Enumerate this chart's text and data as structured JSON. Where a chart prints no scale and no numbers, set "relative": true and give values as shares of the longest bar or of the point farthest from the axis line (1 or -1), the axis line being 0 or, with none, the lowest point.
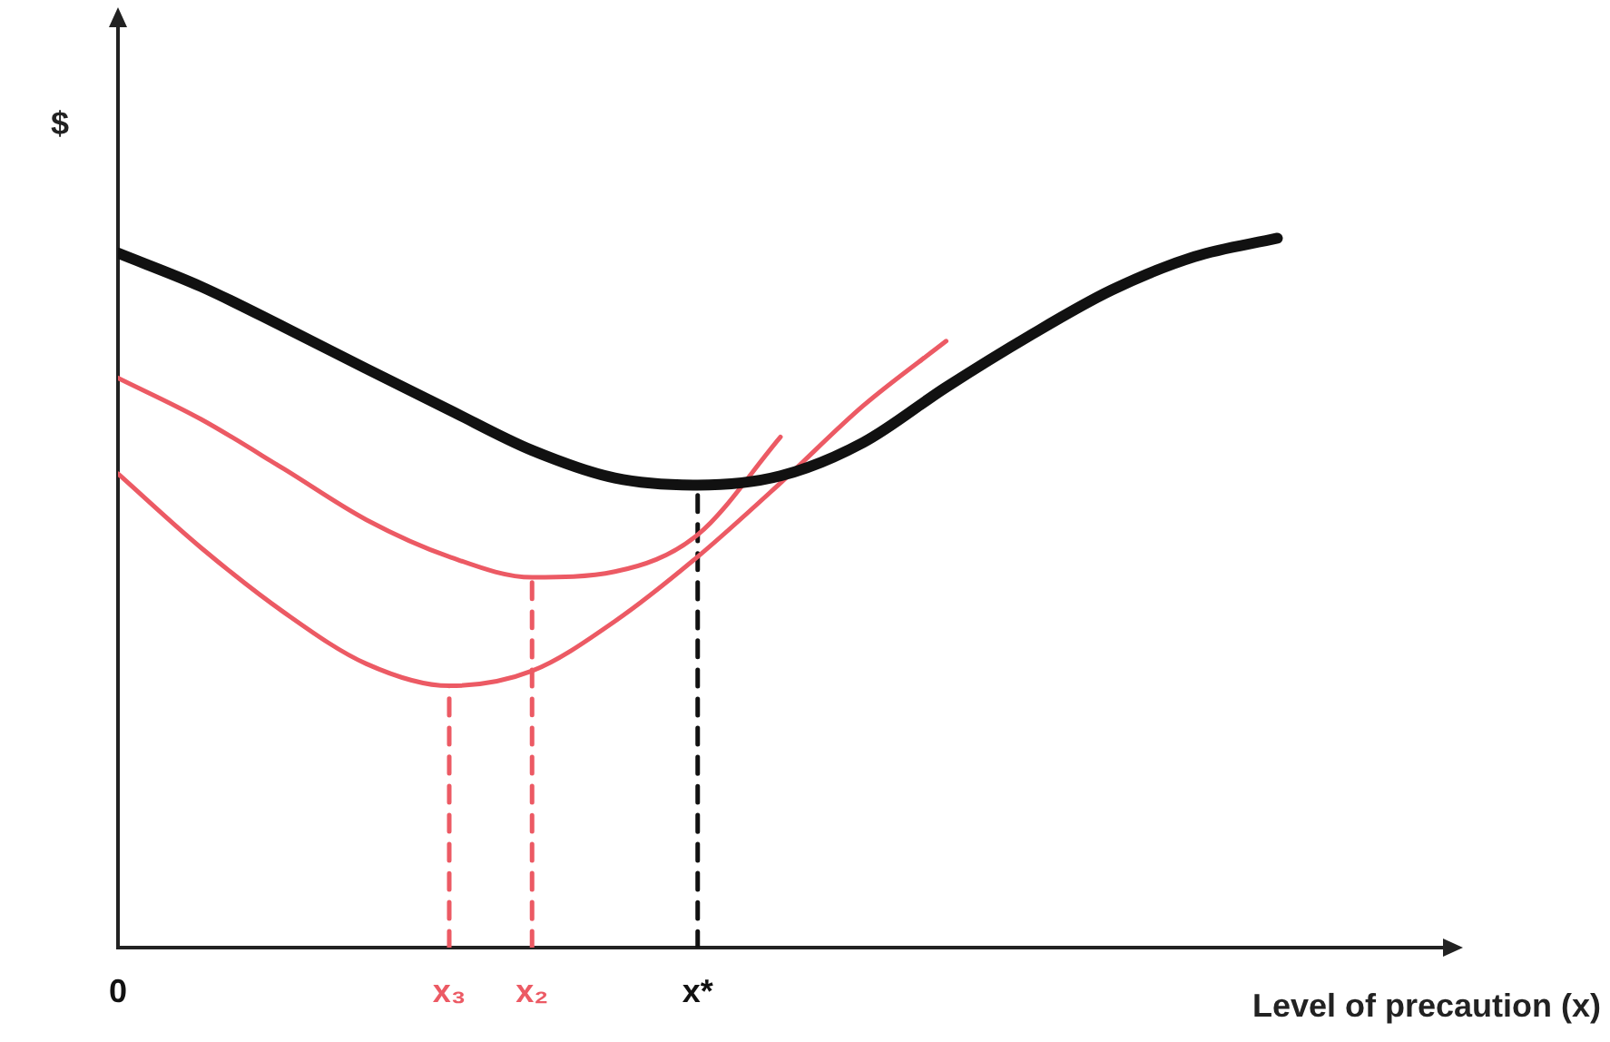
{
  "chart_data": {
    "type": "line",
    "relative": true,
    "ylabel": "$",
    "xlabel": "Level of precaution (x)",
    "categories": [
      "0",
      null,
      null,
      null,
      "x₃",
      "x₂",
      null,
      "x*",
      null,
      null,
      null,
      null,
      null,
      null,
      null,
      null,
      null
    ],
    "tick_labels": "x",
    "grid": false,
    "legend": false,
    "marker": "none",
    "series": [
      {
        "color": "#111111",
        "values": [
          0.979,
          0.932,
          0.875,
          0.816,
          0.758,
          0.701,
          0.662,
          0.652,
          0.665,
          0.712,
          0.79,
          0.862,
          0.927,
          0.974,
          1,
          null,
          null
        ]
      },
      {
        "color": "#ec5a64",
        "values": [
          0.803,
          0.745,
          0.675,
          0.603,
          0.551,
          0.522,
          0.53,
          0.582,
          0.72,
          null,
          null,
          null,
          null,
          null,
          null,
          null,
          null
        ]
      },
      {
        "color": "#ec5a64",
        "values": [
          0.668,
          0.564,
          0.473,
          0.4,
          0.369,
          0.39,
          0.46,
          0.551,
          0.655,
          0.764,
          0.855,
          null,
          null,
          null,
          null,
          null,
          null
        ]
      },
      {
        "color": "#ec5a64",
        "line_style": "dashed",
        "x": [
          "x₃",
          "x₃"
        ],
        "values": [
          0,
          0.369
        ]
      },
      {
        "color": "#ec5a64",
        "line_style": "dashed",
        "x": [
          "x₂",
          "x₂"
        ],
        "values": [
          0,
          0.522
        ]
      },
      {
        "color": "#111111",
        "line_style": "dashed",
        "x": [
          "x*",
          "x*"
        ],
        "values": [
          0,
          0.652
        ]
      }
    ]
  }
}
